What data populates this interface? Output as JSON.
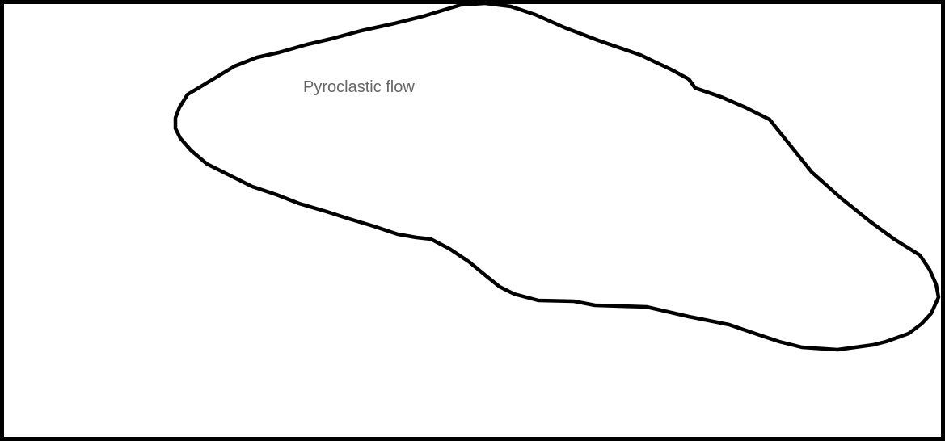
{
  "diagram": {
    "region_label": "Pyroclastic flow",
    "colors": {
      "outline": "#000000",
      "label": "#666666",
      "background": "#ffffff"
    }
  }
}
